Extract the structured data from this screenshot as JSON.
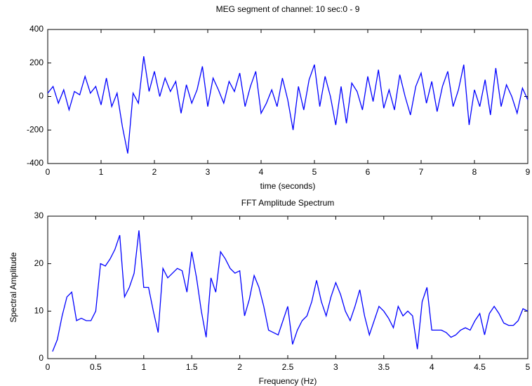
{
  "chart_data": [
    {
      "type": "line",
      "title": "MEG segment of channel: 10  sec:0 - 9",
      "xlabel": "time (seconds)",
      "color": "#0000ff",
      "x": [
        0,
        0.1,
        0.2,
        0.3,
        0.4,
        0.5,
        0.6,
        0.7,
        0.8,
        0.9,
        1,
        1.1,
        1.2,
        1.3,
        1.4,
        1.5,
        1.6,
        1.7,
        1.8,
        1.9,
        2,
        2.1,
        2.2,
        2.3,
        2.4,
        2.5,
        2.6,
        2.7,
        2.8,
        2.9,
        3,
        3.1,
        3.2,
        3.3,
        3.4,
        3.5,
        3.6,
        3.7,
        3.8,
        3.9,
        4,
        4.1,
        4.2,
        4.3,
        4.4,
        4.5,
        4.6,
        4.7,
        4.8,
        4.9,
        5,
        5.1,
        5.2,
        5.3,
        5.4,
        5.5,
        5.6,
        5.7,
        5.8,
        5.9,
        6,
        6.1,
        6.2,
        6.3,
        6.4,
        6.5,
        6.6,
        6.7,
        6.8,
        6.9,
        7,
        7.1,
        7.2,
        7.3,
        7.4,
        7.5,
        7.6,
        7.7,
        7.8,
        7.9,
        8,
        8.1,
        8.2,
        8.3,
        8.4,
        8.5,
        8.6,
        8.7,
        8.8,
        8.9,
        9
      ],
      "values": [
        20,
        60,
        -40,
        40,
        -80,
        30,
        10,
        120,
        20,
        60,
        -50,
        110,
        -60,
        20,
        -180,
        -340,
        20,
        -40,
        240,
        30,
        150,
        0,
        110,
        30,
        90,
        -100,
        70,
        -40,
        40,
        180,
        -60,
        110,
        40,
        -40,
        90,
        30,
        140,
        -60,
        60,
        150,
        -100,
        -40,
        40,
        -60,
        110,
        -20,
        -200,
        60,
        -80,
        100,
        190,
        -60,
        120,
        0,
        -170,
        60,
        -160,
        80,
        30,
        -80,
        120,
        -30,
        160,
        -70,
        40,
        -80,
        130,
        0,
        -110,
        60,
        140,
        -40,
        90,
        -90,
        60,
        150,
        -60,
        40,
        190,
        -170,
        40,
        -60,
        100,
        -110,
        170,
        -60,
        70,
        0,
        -100,
        50,
        -20
      ],
      "xlim": [
        0,
        9
      ],
      "xticks": [
        0,
        1,
        2,
        3,
        4,
        5,
        6,
        7,
        8,
        9
      ],
      "ylim": [
        -400,
        400
      ],
      "yticks": [
        -400,
        -200,
        0,
        200,
        400
      ]
    },
    {
      "type": "line",
      "title": "FFT Amplitude Spectrum",
      "xlabel": "Frequency  (Hz)",
      "ylabel": "Spectral  Amplitude",
      "color": "#0000ff",
      "x": [
        0.05,
        0.1,
        0.15,
        0.2,
        0.25,
        0.3,
        0.35,
        0.4,
        0.45,
        0.5,
        0.55,
        0.6,
        0.65,
        0.7,
        0.75,
        0.8,
        0.85,
        0.9,
        0.95,
        1,
        1.05,
        1.1,
        1.15,
        1.2,
        1.25,
        1.3,
        1.35,
        1.4,
        1.45,
        1.5,
        1.55,
        1.6,
        1.65,
        1.7,
        1.75,
        1.8,
        1.85,
        1.9,
        1.95,
        2,
        2.05,
        2.1,
        2.15,
        2.2,
        2.25,
        2.3,
        2.35,
        2.4,
        2.45,
        2.5,
        2.55,
        2.6,
        2.65,
        2.7,
        2.75,
        2.8,
        2.85,
        2.9,
        2.95,
        3,
        3.05,
        3.1,
        3.15,
        3.2,
        3.25,
        3.3,
        3.35,
        3.4,
        3.45,
        3.5,
        3.55,
        3.6,
        3.65,
        3.7,
        3.75,
        3.8,
        3.85,
        3.9,
        3.95,
        4,
        4.05,
        4.1,
        4.15,
        4.2,
        4.25,
        4.3,
        4.35,
        4.4,
        4.45,
        4.5,
        4.55,
        4.6,
        4.65,
        4.7,
        4.75,
        4.8,
        4.85,
        4.9,
        4.95,
        5
      ],
      "values": [
        1.5,
        4,
        9,
        13,
        14,
        8,
        8.5,
        8,
        8,
        10,
        20,
        19.5,
        21,
        23,
        26,
        13,
        15,
        18,
        27,
        15,
        15,
        10,
        5.5,
        19,
        17,
        18,
        19,
        18.5,
        14,
        22.5,
        17,
        10,
        4.5,
        17,
        14,
        22.5,
        21,
        19,
        18,
        18.5,
        9,
        12.5,
        17.5,
        15,
        11,
        6,
        5.5,
        5,
        8,
        11,
        3,
        6,
        8,
        9,
        12,
        16.5,
        12,
        9,
        13,
        16,
        13.5,
        10,
        8,
        11,
        14.5,
        9,
        5,
        8,
        11,
        10,
        8.5,
        6.5,
        11,
        9,
        10,
        9,
        2,
        12,
        15,
        6,
        6,
        6,
        5.5,
        4.5,
        5,
        6,
        6.5,
        6,
        8,
        9.5,
        5,
        9.5,
        11,
        9.5,
        7.5,
        7,
        7,
        8,
        10.5,
        10
      ],
      "xlim": [
        0,
        5
      ],
      "xticks": [
        0,
        0.5,
        1,
        1.5,
        2,
        2.5,
        3,
        3.5,
        4,
        4.5,
        5
      ],
      "ylim": [
        0,
        30
      ],
      "yticks": [
        0,
        10,
        20,
        30
      ]
    }
  ]
}
